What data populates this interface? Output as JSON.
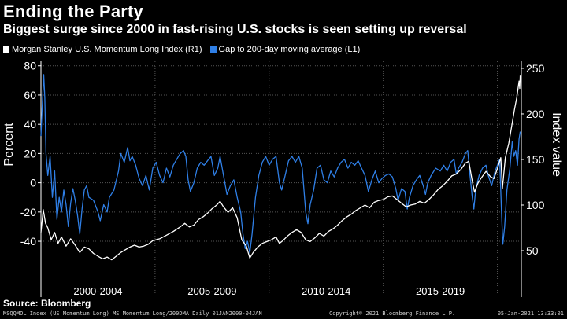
{
  "title": "Ending the Party",
  "subtitle": "Biggest surge since 2000 in fast-rising U.S. stocks is seen setting up reversal",
  "source": "Source: Bloomberg",
  "footer": {
    "left": "MSQQMOL Index (US Momentum Long) MS Momentum Long/200DMA  Daily 01JAN2000-04JAN",
    "middle": "Copyright© 2021 Bloomberg Finance L.P.",
    "right": "05-Jan-2021 13:33:01"
  },
  "colors": {
    "index": "#ffffff",
    "gap": "#2f7fe6",
    "grid": "#555555",
    "background": "#000000"
  },
  "chart_data": {
    "type": "line",
    "xlim": [
      2000.0,
      2021.05
    ],
    "x_ticks": [
      {
        "label": "2000-2004",
        "pos": 2002.5
      },
      {
        "label": "2005-2009",
        "pos": 2007.5
      },
      {
        "label": "2010-2014",
        "pos": 2012.5
      },
      {
        "label": "2015-2019",
        "pos": 2017.5
      }
    ],
    "x_dividers": [
      2005,
      2010,
      2015,
      2020
    ],
    "y_left": {
      "label": "Percent",
      "lim": [
        -62,
        82
      ],
      "ticks": [
        80,
        60,
        40,
        20,
        0,
        -20,
        -40
      ]
    },
    "y_right": {
      "label": "Index value",
      "lim": [
        25,
        256
      ],
      "ticks": [
        250,
        200,
        150,
        100,
        50
      ]
    },
    "series": [
      {
        "name": "Morgan Stanley U.S. Momentum Long Index (R1)",
        "axis": "right",
        "points": [
          [
            2000.0,
            70
          ],
          [
            2000.1,
            95
          ],
          [
            2000.2,
            80
          ],
          [
            2000.3,
            75
          ],
          [
            2000.45,
            62
          ],
          [
            2000.6,
            70
          ],
          [
            2000.75,
            58
          ],
          [
            2000.9,
            65
          ],
          [
            2001.1,
            55
          ],
          [
            2001.3,
            63
          ],
          [
            2001.5,
            56
          ],
          [
            2001.7,
            48
          ],
          [
            2001.9,
            54
          ],
          [
            2002.1,
            52
          ],
          [
            2002.3,
            47
          ],
          [
            2002.5,
            44
          ],
          [
            2002.7,
            41
          ],
          [
            2002.9,
            43
          ],
          [
            2003.1,
            40
          ],
          [
            2003.3,
            44
          ],
          [
            2003.5,
            48
          ],
          [
            2003.7,
            51
          ],
          [
            2003.9,
            54
          ],
          [
            2004.1,
            56
          ],
          [
            2004.3,
            54
          ],
          [
            2004.5,
            55
          ],
          [
            2004.7,
            57
          ],
          [
            2004.9,
            61
          ],
          [
            2005.2,
            63
          ],
          [
            2005.5,
            67
          ],
          [
            2005.8,
            71
          ],
          [
            2006.1,
            76
          ],
          [
            2006.3,
            80
          ],
          [
            2006.5,
            76
          ],
          [
            2006.7,
            78
          ],
          [
            2006.9,
            84
          ],
          [
            2007.1,
            87
          ],
          [
            2007.3,
            91
          ],
          [
            2007.5,
            96
          ],
          [
            2007.7,
            100
          ],
          [
            2007.85,
            104
          ],
          [
            2008.0,
            98
          ],
          [
            2008.2,
            92
          ],
          [
            2008.4,
            97
          ],
          [
            2008.6,
            86
          ],
          [
            2008.8,
            62
          ],
          [
            2009.0,
            55
          ],
          [
            2009.15,
            42
          ],
          [
            2009.3,
            48
          ],
          [
            2009.5,
            54
          ],
          [
            2009.7,
            58
          ],
          [
            2009.9,
            60
          ],
          [
            2010.1,
            62
          ],
          [
            2010.3,
            65
          ],
          [
            2010.45,
            58
          ],
          [
            2010.6,
            61
          ],
          [
            2010.8,
            66
          ],
          [
            2011.0,
            70
          ],
          [
            2011.2,
            73
          ],
          [
            2011.4,
            70
          ],
          [
            2011.6,
            62
          ],
          [
            2011.8,
            60
          ],
          [
            2012.0,
            64
          ],
          [
            2012.2,
            69
          ],
          [
            2012.4,
            66
          ],
          [
            2012.6,
            71
          ],
          [
            2012.8,
            74
          ],
          [
            2013.0,
            78
          ],
          [
            2013.2,
            83
          ],
          [
            2013.4,
            87
          ],
          [
            2013.6,
            90
          ],
          [
            2013.8,
            94
          ],
          [
            2014.0,
            97
          ],
          [
            2014.2,
            100
          ],
          [
            2014.4,
            97
          ],
          [
            2014.6,
            103
          ],
          [
            2014.8,
            105
          ],
          [
            2015.0,
            106
          ],
          [
            2015.2,
            109
          ],
          [
            2015.4,
            110
          ],
          [
            2015.6,
            106
          ],
          [
            2015.8,
            102
          ],
          [
            2016.0,
            98
          ],
          [
            2016.2,
            100
          ],
          [
            2016.4,
            101
          ],
          [
            2016.6,
            104
          ],
          [
            2016.8,
            102
          ],
          [
            2017.0,
            106
          ],
          [
            2017.2,
            111
          ],
          [
            2017.4,
            117
          ],
          [
            2017.6,
            121
          ],
          [
            2017.8,
            126
          ],
          [
            2018.0,
            132
          ],
          [
            2018.2,
            134
          ],
          [
            2018.4,
            139
          ],
          [
            2018.6,
            146
          ],
          [
            2018.75,
            148
          ],
          [
            2018.9,
            126
          ],
          [
            2019.0,
            114
          ],
          [
            2019.15,
            124
          ],
          [
            2019.3,
            130
          ],
          [
            2019.5,
            137
          ],
          [
            2019.7,
            131
          ],
          [
            2019.85,
            129
          ],
          [
            2020.0,
            140
          ],
          [
            2020.15,
            152
          ],
          [
            2020.22,
            118
          ],
          [
            2020.35,
            152
          ],
          [
            2020.5,
            168
          ],
          [
            2020.65,
            190
          ],
          [
            2020.75,
            205
          ],
          [
            2020.85,
            218
          ],
          [
            2020.95,
            236
          ],
          [
            2020.98,
            228
          ],
          [
            2021.0,
            242
          ]
        ]
      },
      {
        "name": "Gap to 200-day moving average (L1)",
        "axis": "left",
        "points": [
          [
            2000.0,
            32
          ],
          [
            2000.05,
            50
          ],
          [
            2000.12,
            74
          ],
          [
            2000.17,
            58
          ],
          [
            2000.22,
            20
          ],
          [
            2000.3,
            5
          ],
          [
            2000.4,
            18
          ],
          [
            2000.5,
            -10
          ],
          [
            2000.6,
            8
          ],
          [
            2000.7,
            -25
          ],
          [
            2000.8,
            -10
          ],
          [
            2000.9,
            -20
          ],
          [
            2001.0,
            -5
          ],
          [
            2001.1,
            -15
          ],
          [
            2001.2,
            -30
          ],
          [
            2001.3,
            -14
          ],
          [
            2001.4,
            -4
          ],
          [
            2001.5,
            -12
          ],
          [
            2001.6,
            -22
          ],
          [
            2001.7,
            -35
          ],
          [
            2001.8,
            -18
          ],
          [
            2001.9,
            -5
          ],
          [
            2002.0,
            -2
          ],
          [
            2002.1,
            -10
          ],
          [
            2002.3,
            -12
          ],
          [
            2002.5,
            -20
          ],
          [
            2002.6,
            -26
          ],
          [
            2002.75,
            -15
          ],
          [
            2002.9,
            -20
          ],
          [
            2003.0,
            -10
          ],
          [
            2003.2,
            -5
          ],
          [
            2003.4,
            8
          ],
          [
            2003.5,
            20
          ],
          [
            2003.65,
            14
          ],
          [
            2003.8,
            24
          ],
          [
            2003.9,
            15
          ],
          [
            2004.0,
            18
          ],
          [
            2004.15,
            12
          ],
          [
            2004.3,
            3
          ],
          [
            2004.45,
            -2
          ],
          [
            2004.6,
            5
          ],
          [
            2004.75,
            -5
          ],
          [
            2004.9,
            10
          ],
          [
            2005.05,
            14
          ],
          [
            2005.2,
            5
          ],
          [
            2005.35,
            0
          ],
          [
            2005.5,
            10
          ],
          [
            2005.65,
            4
          ],
          [
            2005.8,
            12
          ],
          [
            2005.95,
            16
          ],
          [
            2006.1,
            20
          ],
          [
            2006.25,
            22
          ],
          [
            2006.35,
            18
          ],
          [
            2006.45,
            2
          ],
          [
            2006.55,
            -6
          ],
          [
            2006.7,
            0
          ],
          [
            2006.85,
            10
          ],
          [
            2007.0,
            14
          ],
          [
            2007.15,
            12
          ],
          [
            2007.3,
            15
          ],
          [
            2007.45,
            18
          ],
          [
            2007.6,
            5
          ],
          [
            2007.75,
            10
          ],
          [
            2007.85,
            18
          ],
          [
            2008.0,
            5
          ],
          [
            2008.15,
            -8
          ],
          [
            2008.3,
            -2
          ],
          [
            2008.45,
            2
          ],
          [
            2008.6,
            -10
          ],
          [
            2008.75,
            -20
          ],
          [
            2008.85,
            -35
          ],
          [
            2008.95,
            -45
          ],
          [
            2009.05,
            -40
          ],
          [
            2009.15,
            -48
          ],
          [
            2009.25,
            -35
          ],
          [
            2009.4,
            -10
          ],
          [
            2009.55,
            5
          ],
          [
            2009.7,
            14
          ],
          [
            2009.85,
            18
          ],
          [
            2010.0,
            12
          ],
          [
            2010.15,
            16
          ],
          [
            2010.3,
            18
          ],
          [
            2010.45,
            0
          ],
          [
            2010.55,
            -5
          ],
          [
            2010.7,
            5
          ],
          [
            2010.85,
            15
          ],
          [
            2011.0,
            18
          ],
          [
            2011.15,
            14
          ],
          [
            2011.3,
            18
          ],
          [
            2011.45,
            10
          ],
          [
            2011.6,
            -20
          ],
          [
            2011.7,
            -28
          ],
          [
            2011.8,
            -15
          ],
          [
            2011.95,
            -5
          ],
          [
            2012.1,
            10
          ],
          [
            2012.25,
            12
          ],
          [
            2012.4,
            2
          ],
          [
            2012.55,
            0
          ],
          [
            2012.7,
            8
          ],
          [
            2012.85,
            4
          ],
          [
            2013.0,
            10
          ],
          [
            2013.15,
            14
          ],
          [
            2013.3,
            16
          ],
          [
            2013.45,
            10
          ],
          [
            2013.6,
            14
          ],
          [
            2013.75,
            12
          ],
          [
            2013.9,
            15
          ],
          [
            2014.05,
            10
          ],
          [
            2014.2,
            5
          ],
          [
            2014.35,
            -6
          ],
          [
            2014.5,
            2
          ],
          [
            2014.65,
            8
          ],
          [
            2014.8,
            0
          ],
          [
            2014.95,
            3
          ],
          [
            2015.1,
            5
          ],
          [
            2015.25,
            6
          ],
          [
            2015.4,
            4
          ],
          [
            2015.55,
            -4
          ],
          [
            2015.65,
            -12
          ],
          [
            2015.8,
            -4
          ],
          [
            2015.95,
            -6
          ],
          [
            2016.05,
            -18
          ],
          [
            2016.15,
            -10
          ],
          [
            2016.3,
            -2
          ],
          [
            2016.45,
            2
          ],
          [
            2016.6,
            5
          ],
          [
            2016.75,
            -2
          ],
          [
            2016.85,
            -8
          ],
          [
            2016.95,
            0
          ],
          [
            2017.1,
            5
          ],
          [
            2017.3,
            10
          ],
          [
            2017.5,
            8
          ],
          [
            2017.65,
            12
          ],
          [
            2017.8,
            8
          ],
          [
            2017.95,
            14
          ],
          [
            2018.1,
            16
          ],
          [
            2018.2,
            6
          ],
          [
            2018.3,
            10
          ],
          [
            2018.45,
            14
          ],
          [
            2018.6,
            20
          ],
          [
            2018.7,
            22
          ],
          [
            2018.8,
            5
          ],
          [
            2018.9,
            -10
          ],
          [
            2018.97,
            -18
          ],
          [
            2019.05,
            -5
          ],
          [
            2019.2,
            5
          ],
          [
            2019.35,
            10
          ],
          [
            2019.5,
            12
          ],
          [
            2019.6,
            5
          ],
          [
            2019.75,
            -2
          ],
          [
            2019.9,
            8
          ],
          [
            2020.0,
            12
          ],
          [
            2020.1,
            16
          ],
          [
            2020.18,
            -20
          ],
          [
            2020.24,
            -42
          ],
          [
            2020.32,
            -30
          ],
          [
            2020.42,
            -5
          ],
          [
            2020.55,
            10
          ],
          [
            2020.65,
            28
          ],
          [
            2020.72,
            18
          ],
          [
            2020.8,
            22
          ],
          [
            2020.88,
            12
          ],
          [
            2020.95,
            30
          ],
          [
            2021.0,
            35
          ]
        ]
      }
    ]
  }
}
